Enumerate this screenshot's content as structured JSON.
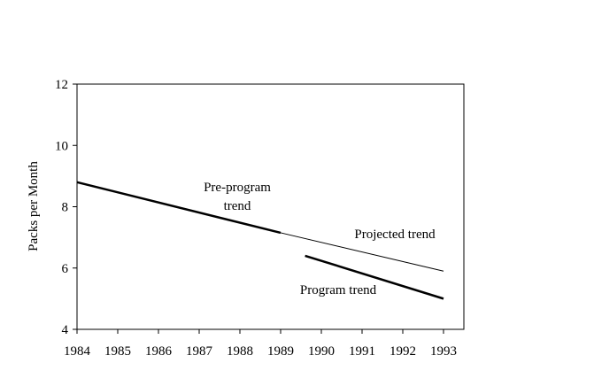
{
  "chart_data": {
    "type": "line",
    "title": "",
    "xlabel": "",
    "ylabel": "Packs per Month",
    "xlim": [
      1984,
      1993
    ],
    "ylim": [
      4,
      12
    ],
    "x_ticks": [
      "1984",
      "1985",
      "1986",
      "1987",
      "1988",
      "1989",
      "1990",
      "1991",
      "1992",
      "1993"
    ],
    "y_ticks": [
      "4",
      "6",
      "8",
      "10",
      "12"
    ],
    "grid": false,
    "legend": "none",
    "series": [
      {
        "label_lines": [
          "Pre-program",
          "trend"
        ],
        "style": "thick",
        "points": [
          [
            1984,
            8.8
          ],
          [
            1989,
            7.15
          ]
        ]
      },
      {
        "label_lines": [
          "Projected trend"
        ],
        "style": "thin",
        "points": [
          [
            1989,
            7.15
          ],
          [
            1993,
            5.9
          ]
        ]
      },
      {
        "label_lines": [
          "Program trend"
        ],
        "style": "thick",
        "points": [
          [
            1989.6,
            6.4
          ],
          [
            1993,
            5.0
          ]
        ]
      }
    ]
  },
  "colors": {
    "line": "#000000",
    "background": "#ffffff"
  }
}
